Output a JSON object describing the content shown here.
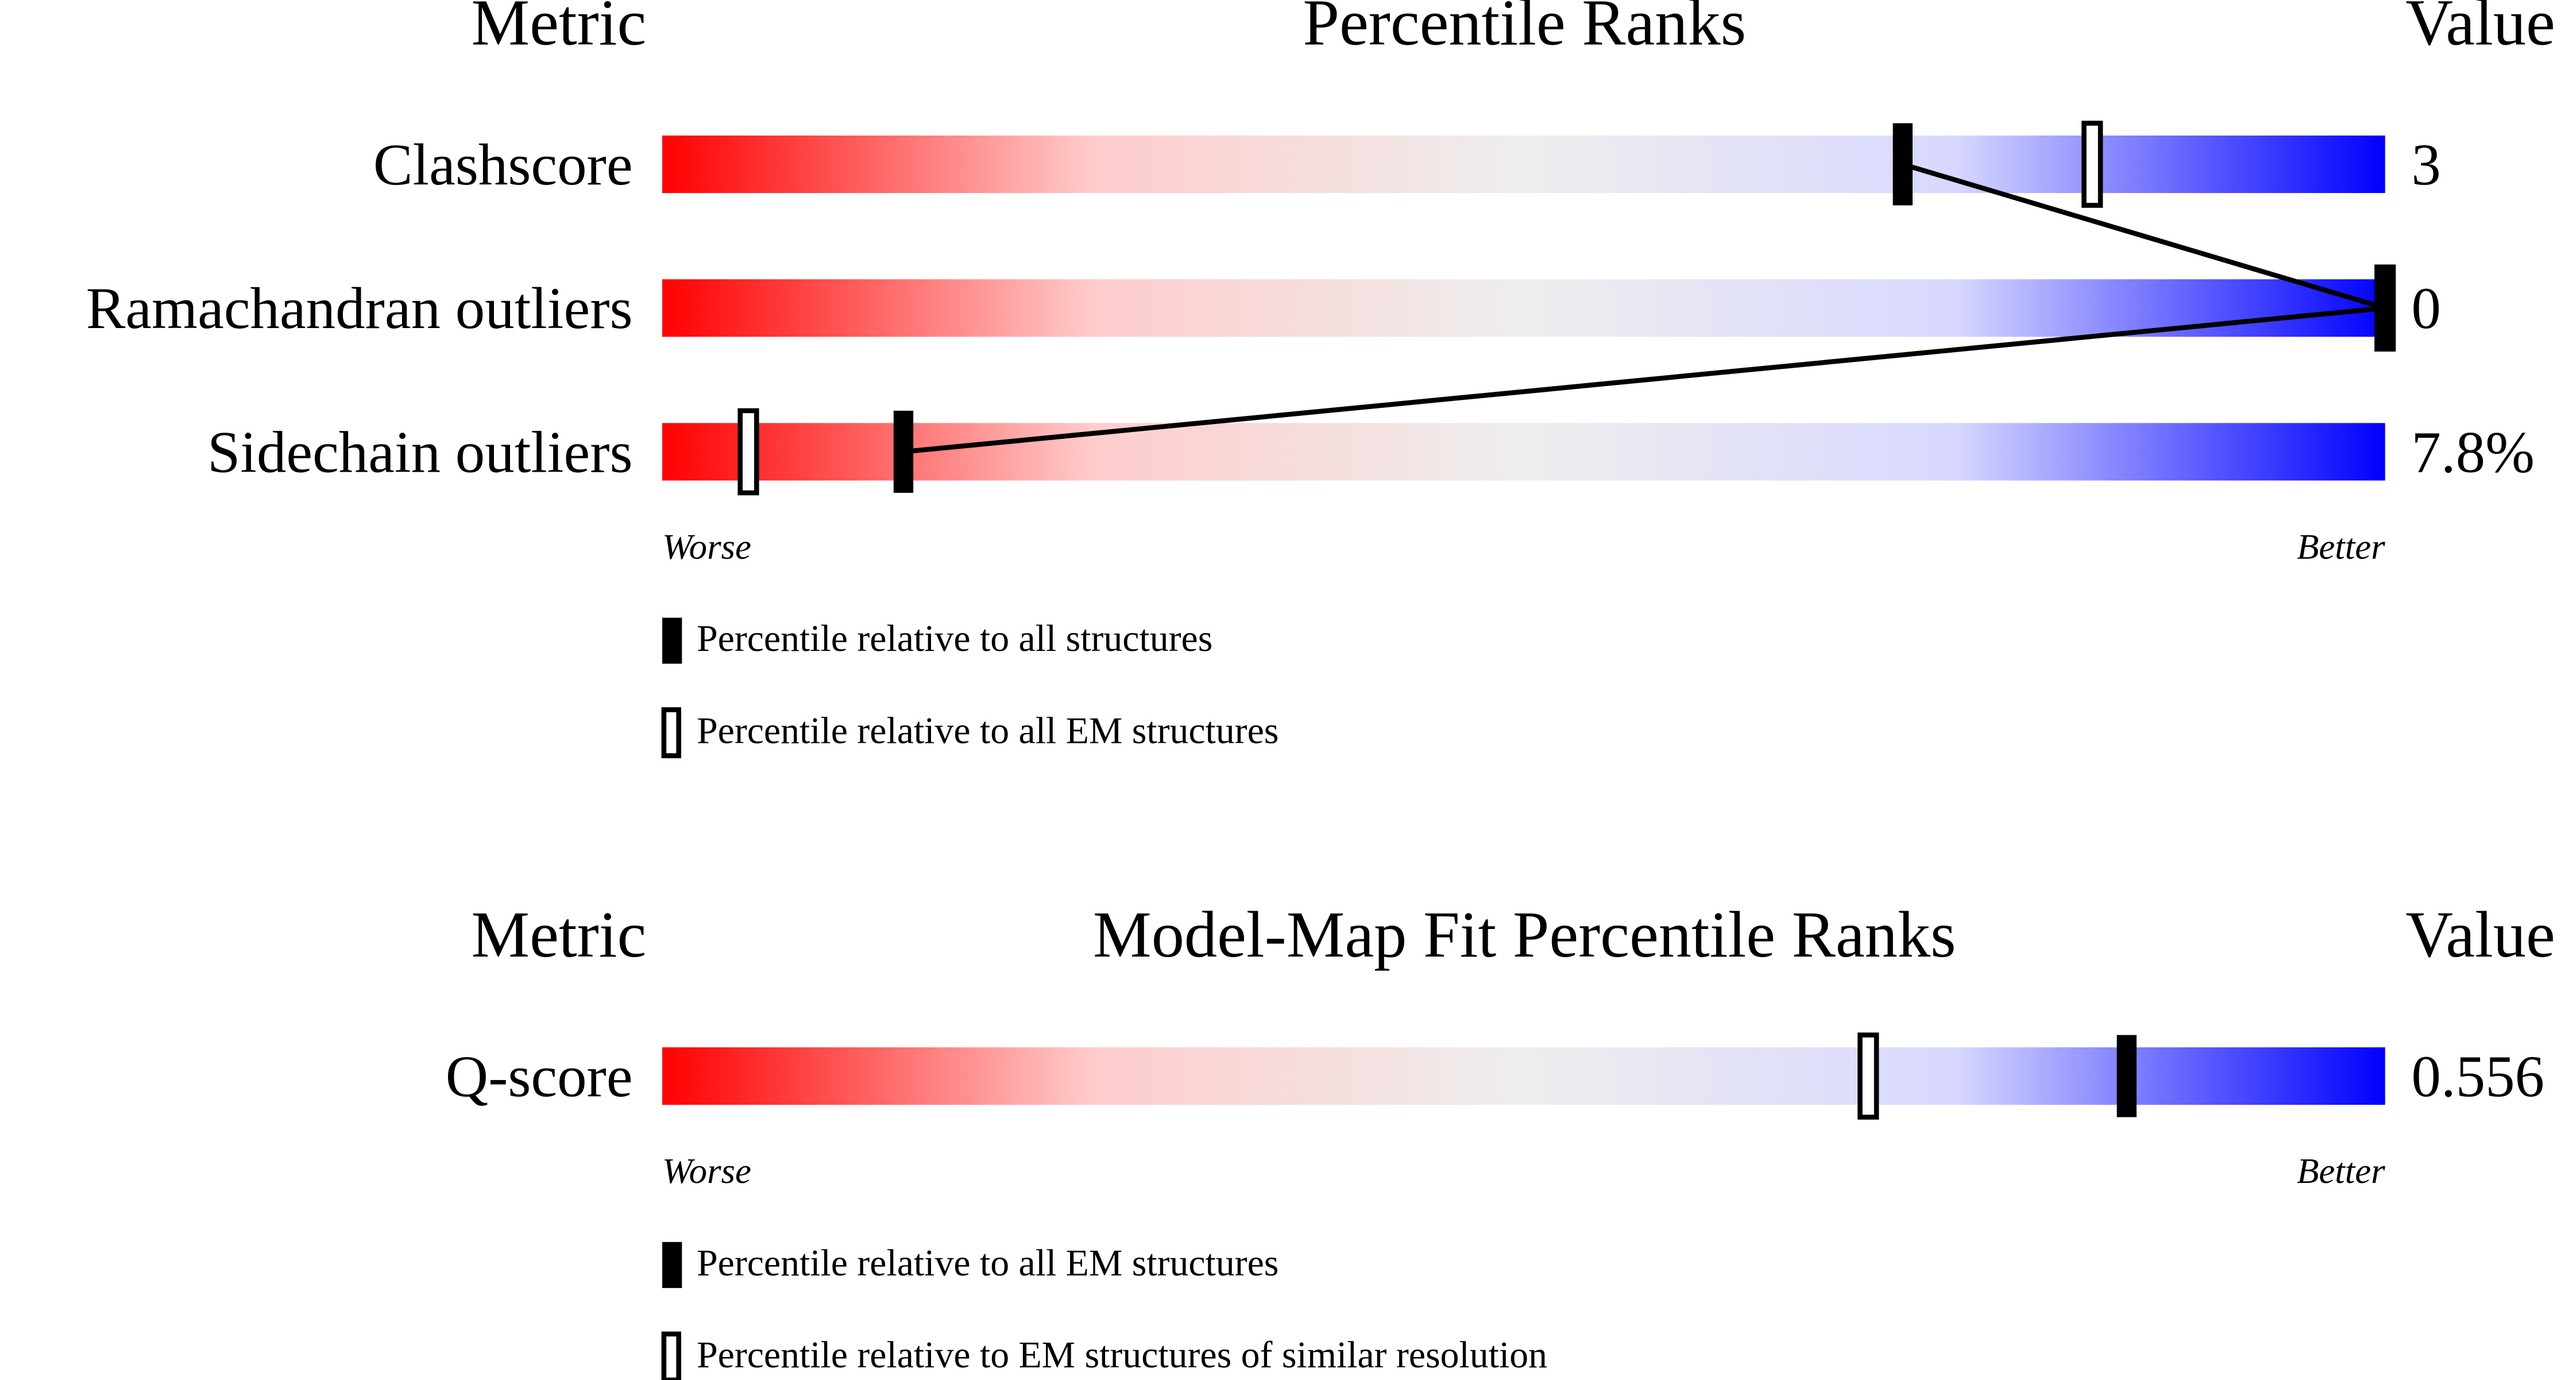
{
  "chart_data": [
    {
      "type": "percentile-slider",
      "title": "Percentile Ranks",
      "metric_header": "Metric",
      "value_header": "Value",
      "categories": [
        "Clashscore",
        "Ramachandran outliers",
        "Sidechain outliers"
      ],
      "metric_values": [
        "3",
        "0",
        "7.8%"
      ],
      "xlim": [
        0,
        100
      ],
      "low_label": "Worse",
      "high_label": "Better",
      "gradient": [
        "#ff0000",
        "#ffcccc",
        "#eeeeee",
        "#d8d8ff",
        "#0000ff"
      ],
      "connect": true,
      "series": [
        {
          "name": "Percentile relative to all structures",
          "marker": "filled",
          "color": "#000000",
          "values": [
            72,
            100,
            14
          ]
        },
        {
          "name": "Percentile relative to all EM structures",
          "marker": "hollow",
          "color": "#000000",
          "values": [
            83,
            100,
            5
          ]
        }
      ]
    },
    {
      "type": "percentile-slider",
      "title": "Model-Map Fit Percentile Ranks",
      "metric_header": "Metric",
      "value_header": "Value",
      "categories": [
        "Q-score"
      ],
      "metric_values": [
        "0.556"
      ],
      "xlim": [
        0,
        100
      ],
      "low_label": "Worse",
      "high_label": "Better",
      "gradient": [
        "#ff0000",
        "#ffcccc",
        "#eeeeee",
        "#d8d8ff",
        "#0000ff"
      ],
      "connect": false,
      "series": [
        {
          "name": "Percentile relative to all EM structures",
          "marker": "filled",
          "color": "#000000",
          "values": [
            85
          ]
        },
        {
          "name": "Percentile relative to EM structures of similar resolution",
          "marker": "hollow",
          "color": "#000000",
          "values": [
            70
          ]
        }
      ]
    }
  ]
}
